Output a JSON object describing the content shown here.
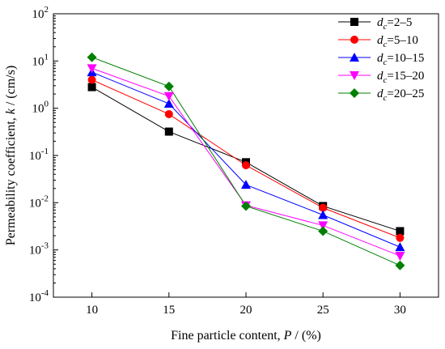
{
  "chart_data": {
    "type": "line",
    "xlabel_prefix": "Fine particle content, ",
    "xlabel_var": "P",
    "xlabel_suffix": " / (%)",
    "ylabel_prefix": "Permeability coefficient, ",
    "ylabel_var": "k",
    "ylabel_suffix": " / (cm/s)",
    "x": [
      10,
      15,
      20,
      25,
      30
    ],
    "x_ticks": [
      "10",
      "15",
      "20",
      "25",
      "30"
    ],
    "y_ticks": [
      {
        "base": "10",
        "exp": "2",
        "value": 100
      },
      {
        "base": "10",
        "exp": "1",
        "value": 10
      },
      {
        "base": "10",
        "exp": "0",
        "value": 1
      },
      {
        "base": "10",
        "exp": "-1",
        "value": 0.1
      },
      {
        "base": "10",
        "exp": "-2",
        "value": 0.01
      },
      {
        "base": "10",
        "exp": "-3",
        "value": 0.001
      },
      {
        "base": "10",
        "exp": "-4",
        "value": 0.0001
      }
    ],
    "xlim": [
      7.5,
      32.5
    ],
    "ylim": [
      0.0001,
      100
    ],
    "y_scale": "log",
    "grid": false,
    "legend_position": "top-right",
    "series": [
      {
        "label_var": "d",
        "label_sub": "c",
        "label_range": "=2–5",
        "marker": "square",
        "color": "#000000",
        "values": [
          2.8,
          0.32,
          0.072,
          0.0085,
          0.0025
        ]
      },
      {
        "label_var": "d",
        "label_sub": "c",
        "label_range": "=5–10",
        "marker": "circle",
        "color": "#ff0000",
        "values": [
          4.0,
          0.75,
          0.062,
          0.0078,
          0.0018
        ]
      },
      {
        "label_var": "d",
        "label_sub": "c",
        "label_range": "=10–15",
        "marker": "triangle-up",
        "color": "#0000ff",
        "values": [
          5.8,
          1.25,
          0.024,
          0.0055,
          0.00115
        ]
      },
      {
        "label_var": "d",
        "label_sub": "c",
        "label_range": "=15–20",
        "marker": "triangle-down",
        "color": "#ff00ff",
        "values": [
          7.0,
          1.8,
          0.0088,
          0.0033,
          0.00075
        ]
      },
      {
        "label_var": "d",
        "label_sub": "c",
        "label_range": "=20–25",
        "marker": "diamond",
        "color": "#008000",
        "values": [
          12.0,
          2.9,
          0.0085,
          0.0025,
          0.00047
        ]
      }
    ]
  }
}
